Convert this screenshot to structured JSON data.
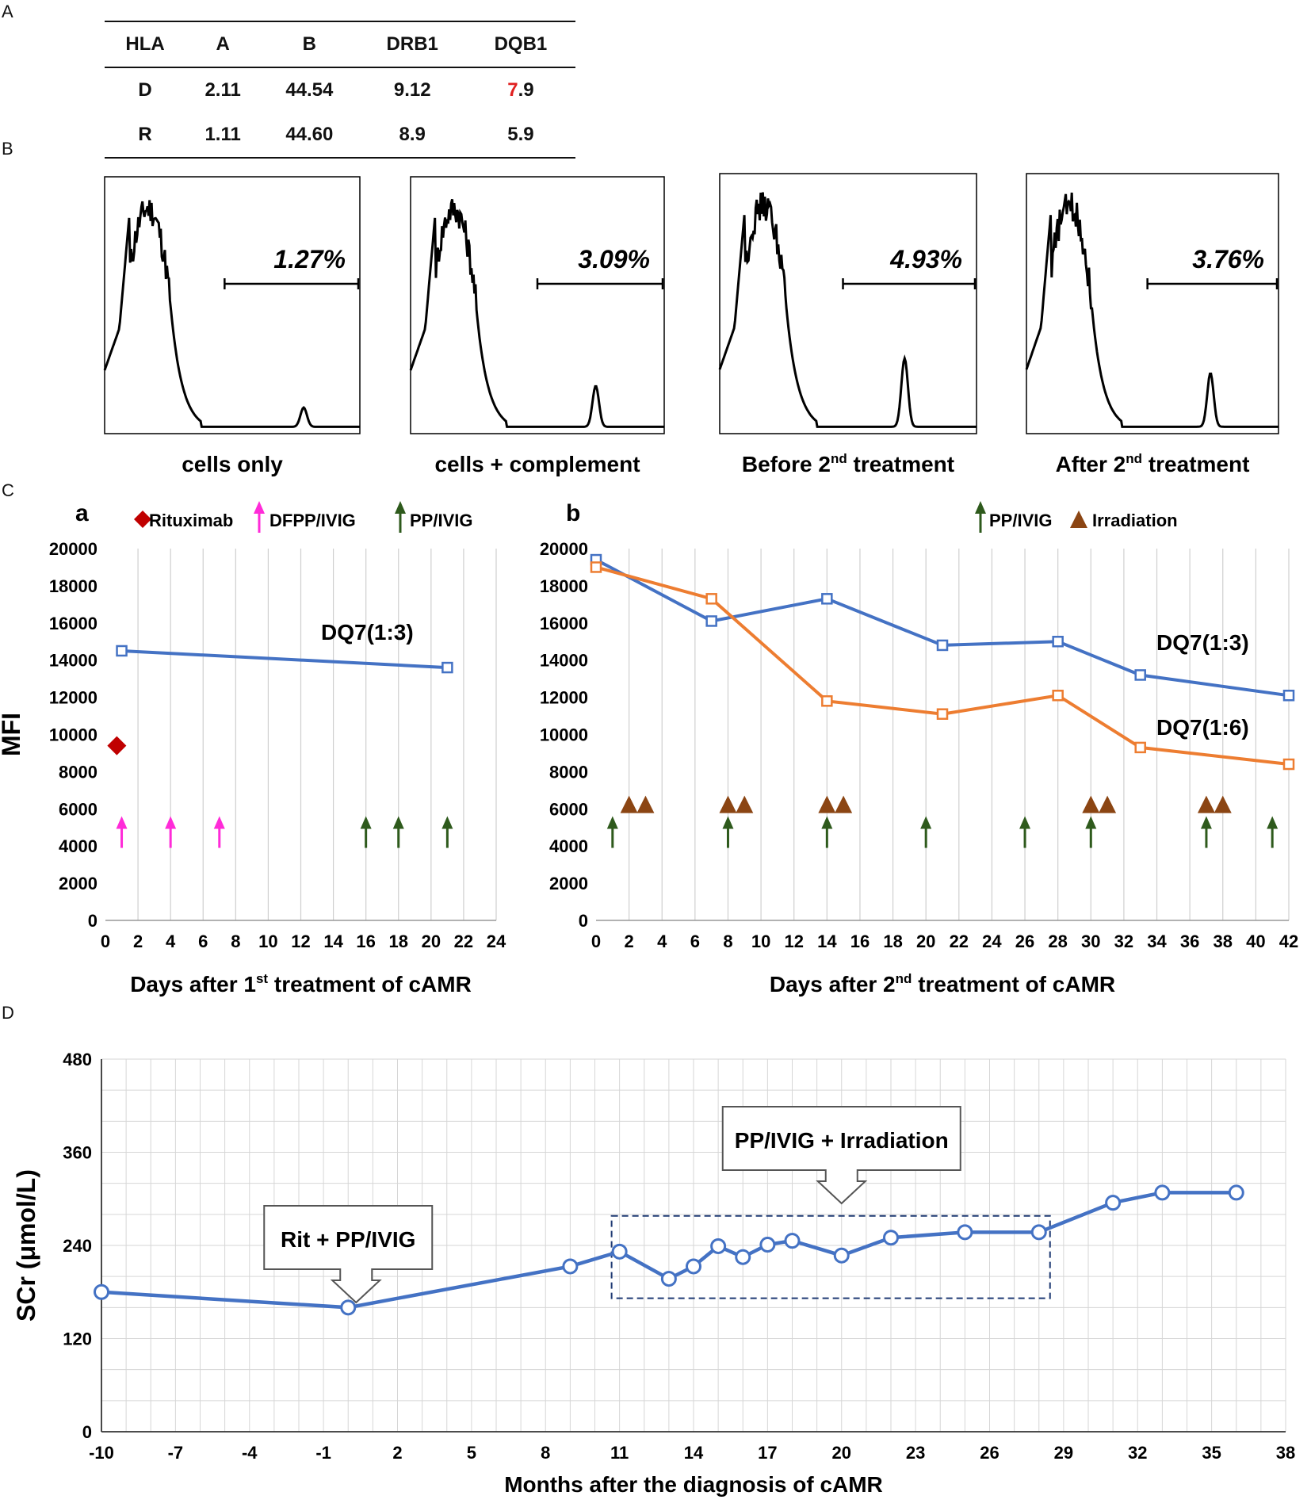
{
  "panel_labels": {
    "A": "A",
    "B": "B",
    "C": "C",
    "D": "D"
  },
  "hla_table": {
    "headers": [
      "HLA",
      "A",
      "B",
      "DRB1",
      "DQB1"
    ],
    "rows": [
      {
        "label": "D",
        "a": "2.11",
        "b": "44.54",
        "drb1": "9.12",
        "dqb1_highlight": "7",
        "dqb1_rest": ".9"
      },
      {
        "label": "R",
        "a": "1.11",
        "b": "44.60",
        "drb1": "8.9",
        "dqb1": "5.9"
      }
    ]
  },
  "flow_histograms": [
    {
      "label": "cells only",
      "percent": "1.27%",
      "peak_level": 0.08
    },
    {
      "label": "cells + complement",
      "percent": "3.09%",
      "peak_level": 0.17
    },
    {
      "label_main": "Before 2",
      "label_sup": "nd",
      "label_tail": " treatment",
      "percent": "4.93%",
      "peak_level": 0.28
    },
    {
      "label_main": "After 2",
      "label_sup": "nd",
      "label_tail": " treatment",
      "percent": "3.76%",
      "peak_level": 0.22
    }
  ],
  "chart_data": [
    {
      "panel": "a",
      "type": "line",
      "ylabel": "MFI",
      "xlabel_main": "Days after 1",
      "xlabel_sup": "st",
      "xlabel_tail": " treatment of cAMR",
      "xlim": [
        0,
        24
      ],
      "xticks": [
        "0",
        "2",
        "4",
        "6",
        "8",
        "10",
        "12",
        "14",
        "16",
        "18",
        "20",
        "22",
        "24"
      ],
      "ylim": [
        0,
        20000
      ],
      "yticks": [
        "0",
        "2000",
        "4000",
        "6000",
        "8000",
        "10000",
        "12000",
        "14000",
        "16000",
        "18000",
        "20000"
      ],
      "grid": "vertical",
      "legend": {
        "rituximab": "Rituximab",
        "dfpp": "DFPP/IVIG",
        "pp": "PP/IVIG"
      },
      "series": [
        {
          "name": "DQ7(1:3)",
          "color": "#4472c4",
          "x": [
            1,
            21
          ],
          "y": [
            14500,
            13600
          ]
        }
      ],
      "rituximab_days": [
        0.7
      ],
      "rituximab_level": 9400,
      "dfpp_days": [
        1,
        4,
        7
      ],
      "pp_days": [
        16,
        18,
        21
      ]
    },
    {
      "panel": "b",
      "type": "line",
      "xlabel_main": "Days after 2",
      "xlabel_sup": "nd",
      "xlabel_tail": " treatment of cAMR",
      "xlim": [
        0,
        42
      ],
      "xticks": [
        "0",
        "2",
        "4",
        "6",
        "8",
        "10",
        "12",
        "14",
        "16",
        "18",
        "20",
        "22",
        "24",
        "26",
        "28",
        "30",
        "32",
        "34",
        "36",
        "38",
        "40",
        "42"
      ],
      "ylim": [
        0,
        20000
      ],
      "yticks": [
        "0",
        "2000",
        "4000",
        "6000",
        "8000",
        "10000",
        "12000",
        "14000",
        "16000",
        "18000",
        "20000"
      ],
      "grid": "vertical",
      "legend": {
        "pp": "PP/IVIG",
        "irradiation": "Irradiation"
      },
      "series": [
        {
          "name": "DQ7(1:3)",
          "color": "#4472c4",
          "x": [
            0,
            7,
            14,
            21,
            28,
            33,
            42
          ],
          "y": [
            19400,
            16100,
            17300,
            14800,
            15000,
            13200,
            12100
          ]
        },
        {
          "name": "DQ7(1:6)",
          "color": "#ed7d31",
          "x": [
            0,
            7,
            14,
            21,
            28,
            33,
            42
          ],
          "y": [
            19000,
            17300,
            11800,
            11100,
            12100,
            9300,
            8400
          ]
        }
      ],
      "pp_days": [
        1,
        8,
        14,
        20,
        26,
        30,
        37,
        41
      ],
      "irradiation_days": [
        2,
        3,
        8,
        9,
        14,
        15,
        30,
        31,
        37,
        38
      ]
    },
    {
      "panel": "D",
      "type": "line",
      "ylabel": "SCr (μmol/L)",
      "xlabel": "Months after the diagnosis of cAMR",
      "xlim": [
        -10,
        38
      ],
      "xticks": [
        "-10",
        "-7",
        "-4",
        "-1",
        "2",
        "5",
        "8",
        "11",
        "14",
        "17",
        "20",
        "23",
        "26",
        "29",
        "32",
        "35",
        "38"
      ],
      "ylim": [
        0,
        480
      ],
      "yticks": [
        "0",
        "120",
        "240",
        "360",
        "480"
      ],
      "grid": "both",
      "series": [
        {
          "name": "SCr",
          "color": "#4472c4",
          "x": [
            -10,
            0,
            9,
            11,
            13,
            14,
            15,
            16,
            17,
            18,
            20,
            22,
            25,
            28,
            31,
            33,
            36
          ],
          "y": [
            180,
            160,
            213,
            232,
            197,
            213,
            239,
            225,
            241,
            246,
            227,
            250,
            257,
            257,
            295,
            308,
            308
          ]
        }
      ],
      "annotations": [
        {
          "text": "Rit + PP/IVIG",
          "at_month": 0
        },
        {
          "text": "PP/IVIG + Irradiation",
          "at_month": 20
        }
      ],
      "highlight_range": {
        "x": [
          11,
          28
        ],
        "y": [
          172,
          278
        ]
      }
    }
  ]
}
